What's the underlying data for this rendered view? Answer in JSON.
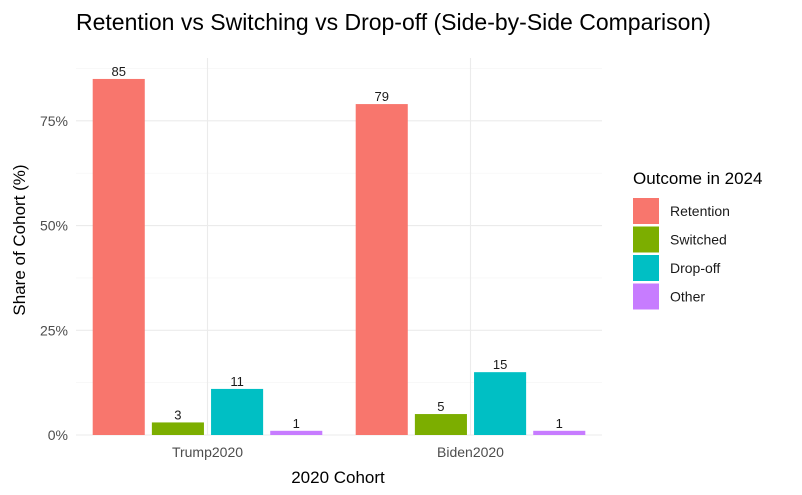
{
  "chart_data": {
    "type": "bar",
    "title": "Retention vs Switching vs Drop-off (Side-by-Side Comparison)",
    "xlabel": "2020 Cohort",
    "ylabel": "Share of Cohort (%)",
    "categories": [
      "Trump2020",
      "Biden2020"
    ],
    "series": [
      {
        "name": "Retention",
        "color": "#F8766D",
        "values": [
          85,
          79
        ]
      },
      {
        "name": "Switched",
        "color": "#7CAE00",
        "values": [
          3,
          5
        ]
      },
      {
        "name": "Drop-off",
        "color": "#00BFC4",
        "values": [
          11,
          15
        ]
      },
      {
        "name": "Other",
        "color": "#C77CFF",
        "values": [
          1,
          1
        ]
      }
    ],
    "ylim": [
      0,
      90
    ],
    "yticks": [
      {
        "value": 0,
        "label": "0%"
      },
      {
        "value": 25,
        "label": "25%"
      },
      {
        "value": 50,
        "label": "50%"
      },
      {
        "value": 75,
        "label": "75%"
      }
    ],
    "legend": {
      "title": "Outcome in 2024",
      "position": "right"
    },
    "grid": true,
    "data_labels": true
  }
}
